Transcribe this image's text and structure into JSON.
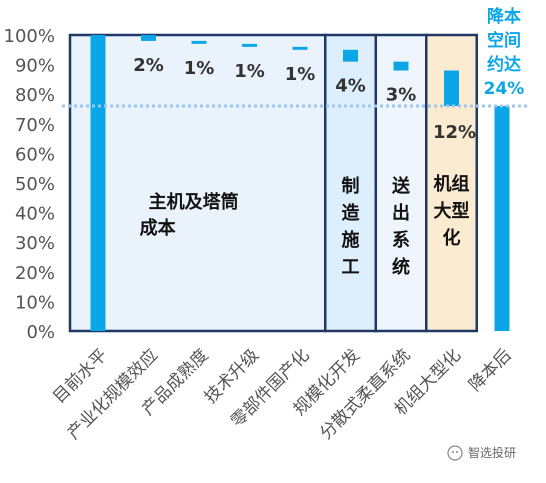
{
  "chart_data": {
    "type": "waterfall-bar",
    "categories": [
      "目前水平",
      "产业化规模效应",
      "产品成熟度",
      "技术升级",
      "零部件国产化",
      "规模化开发",
      "分散式柔直系统",
      "机组大型化",
      "降本后"
    ],
    "bars": [
      {
        "category": "目前水平",
        "base": 0,
        "top": 100,
        "kind": "total"
      },
      {
        "category": "产业化规模效应",
        "base": 98,
        "top": 100,
        "kind": "reduction",
        "label": "2%"
      },
      {
        "category": "产品成熟度",
        "base": 97,
        "top": 98,
        "kind": "reduction",
        "label": "1%"
      },
      {
        "category": "技术升级",
        "base": 96,
        "top": 97,
        "kind": "reduction",
        "label": "1%"
      },
      {
        "category": "零部件国产化",
        "base": 95,
        "top": 96,
        "kind": "reduction",
        "label": "1%"
      },
      {
        "category": "规模化开发",
        "base": 91,
        "top": 95,
        "kind": "reduction",
        "label": "4%"
      },
      {
        "category": "分散式柔直系统",
        "base": 88,
        "top": 91,
        "kind": "reduction",
        "label": "3%"
      },
      {
        "category": "机组大型化",
        "base": 76,
        "top": 88,
        "kind": "reduction",
        "label": "12%"
      },
      {
        "category": "降本后",
        "base": 0,
        "top": 76,
        "kind": "total"
      }
    ],
    "ylim": [
      0,
      100
    ],
    "yticks": [
      "0%",
      "10%",
      "20%",
      "30%",
      "40%",
      "50%",
      "60%",
      "70%",
      "80%",
      "90%",
      "100%"
    ],
    "reference_line": 76,
    "groups": [
      {
        "label": "主机及塔筒成本",
        "from": 1,
        "to": 4,
        "fill": "#EAF3FC",
        "border": "#1F3864"
      },
      {
        "label": "制造施工",
        "from": 5,
        "to": 5,
        "fill": "#DDEFFC",
        "border": "#1F3864"
      },
      {
        "label": "送出系统",
        "from": 6,
        "to": 6,
        "fill": "#EEF5FC",
        "border": "#1F3864"
      },
      {
        "label": "机组大型化",
        "from": 7,
        "to": 7,
        "fill": "#FBEBD0",
        "border": "#1F3864"
      }
    ],
    "annotation": "降本空间约达24%",
    "colors": {
      "bar": "#0AA6E8",
      "text": "#333333",
      "axis": "#555555",
      "accent": "#0AA6E8",
      "ref": "#9DC8EE"
    }
  },
  "watermark": "智选投研"
}
